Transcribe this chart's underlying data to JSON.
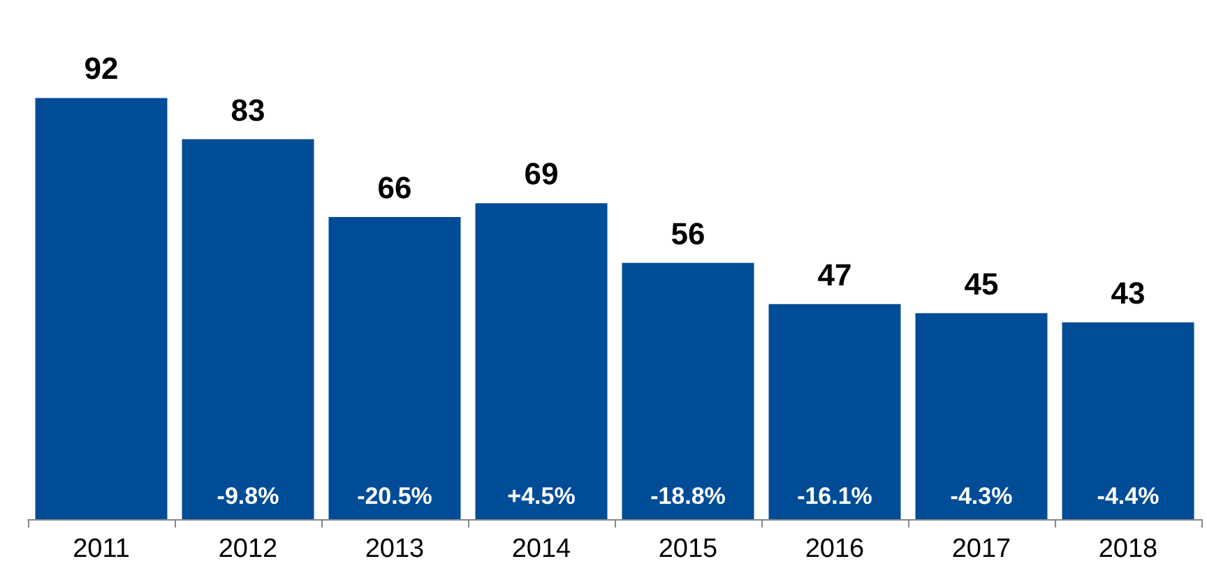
{
  "chart_data": {
    "type": "bar",
    "categories": [
      "2011",
      "2012",
      "2013",
      "2014",
      "2015",
      "2016",
      "2017",
      "2018"
    ],
    "values": [
      92,
      83,
      66,
      69,
      56,
      47,
      45,
      43
    ],
    "color": "#004c97",
    "data_labels": true,
    "annotations": [
      "-9.8%",
      "-20.5%",
      "+4.5%",
      "-18.8%",
      "-16.1%",
      "-4.3%",
      "-4.4%"
    ]
  }
}
